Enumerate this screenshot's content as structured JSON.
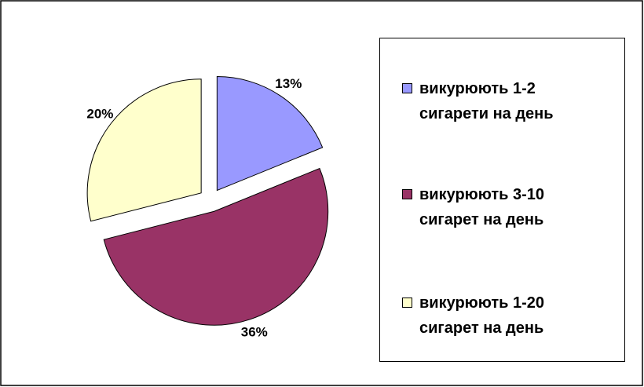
{
  "chart_data": {
    "type": "pie",
    "categories": [
      "викурюють 1-2 сигарети на день",
      "викурюють 3-10 сигарет на день",
      "викурюють 1-20 сигарет на день"
    ],
    "values": [
      13,
      36,
      20
    ],
    "value_labels": [
      "13%",
      "36%",
      "20%"
    ],
    "colors": [
      "#9999ff",
      "#993366",
      "#ffffcc"
    ],
    "legend": "right"
  }
}
